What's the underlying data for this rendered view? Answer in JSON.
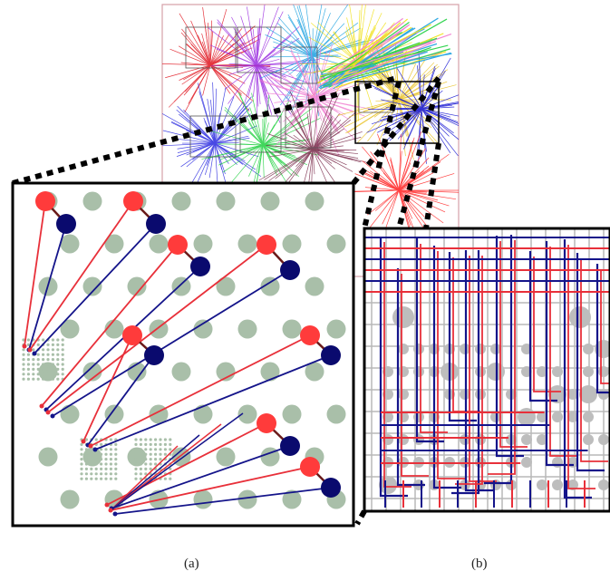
{
  "captions": {
    "a": "(a)",
    "b": "(b)"
  },
  "colors": {
    "pad": "#a9bfa9",
    "red_pin": "#ff3b3b",
    "blue_pin": "#0a0a6e",
    "red_wire": "#e8303a",
    "blue_wire": "#14148a",
    "frame": "#000000",
    "grid_wire": "#b8b8b8",
    "via": "#bdbdbd",
    "overview_outline": "#d6a0a8"
  },
  "overview_cluster_colors": [
    "#e0141e",
    "#9a2be0",
    "#1aa0e0",
    "#f0e010",
    "#2a2ae0",
    "#20d040",
    "#f07ad0",
    "#7a2a4a",
    "#e8c020",
    "#1010d0",
    "#ff2020"
  ],
  "icons": {
    "zoom_connector": "dotted-line",
    "pin_pair": "circle-pair"
  }
}
